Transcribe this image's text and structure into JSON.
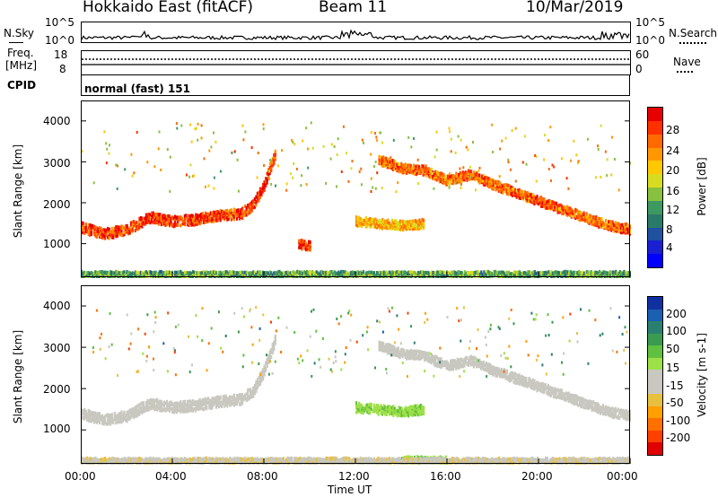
{
  "header": {
    "station": "Hokkaido East (fitACF)",
    "beam": "Beam 11",
    "date": "10/Mar/2019"
  },
  "noise": {
    "left_label": "N.Sky",
    "right_label": "N.Search",
    "tick_top": "10^5",
    "tick_bottom": "10^0"
  },
  "freq": {
    "label_line1": "Freq.",
    "label_line2": "[MHz]",
    "left_ticks": [
      "18",
      "8"
    ],
    "right_ticks": [
      "60",
      "0"
    ],
    "right_label": "Nave"
  },
  "cpid": {
    "label": "CPID",
    "value": "normal (fast) 151"
  },
  "axes": {
    "ylabel": "Slant Range [km]",
    "yticks": [
      "4000",
      "3000",
      "2000",
      "1000"
    ],
    "xticks": [
      "00:00",
      "04:00",
      "08:00",
      "12:00",
      "16:00",
      "20:00",
      "00:00"
    ],
    "xlabel": "Time UT"
  },
  "colorbars": {
    "power": {
      "label": "Power [dB]",
      "ticks": [
        "28",
        "24",
        "20",
        "16",
        "12",
        "8",
        "4"
      ],
      "colors": [
        "#e60000",
        "#ff3000",
        "#ff6a00",
        "#ff9800",
        "#ffc800",
        "#d8dc20",
        "#88c040",
        "#3c9a60",
        "#2a7a6a",
        "#2050a0",
        "#1a20d0",
        "#0000ff"
      ]
    },
    "velocity": {
      "label": "Velocity [m s-1]",
      "ticks": [
        "200",
        "100",
        "50",
        "15",
        "-15",
        "-50",
        "-100",
        "-200"
      ],
      "colors": [
        "#1030a0",
        "#1a5fb0",
        "#2a8070",
        "#3a9a50",
        "#60c040",
        "#9ee048",
        "#c8c8c0",
        "#c8c8c0",
        "#e8c040",
        "#ffa000",
        "#ff7000",
        "#ff4000",
        "#e00000"
      ]
    }
  },
  "chart_data": [
    {
      "type": "heatmap",
      "title": "Power [dB]",
      "xlabel": "Time UT",
      "ylabel": "Slant Range [km]",
      "xlim": [
        "00:00",
        "24:00"
      ],
      "ylim": [
        180,
        4500
      ],
      "clim": [
        0,
        30
      ],
      "bands": [
        {
          "t": [
            0.0,
            1.0,
            2.0,
            3.0,
            4.0,
            5.0,
            6.0,
            7.0,
            7.5,
            8.0,
            8.5
          ],
          "r": [
            1450,
            1300,
            1400,
            1700,
            1600,
            1650,
            1750,
            1800,
            2000,
            2500,
            3300
          ],
          "dB": 26
        },
        {
          "t": [
            13.0,
            14.0,
            15.0,
            16.0,
            17.0,
            18.0,
            19.0,
            20.0,
            21.0,
            22.0,
            23.0,
            24.0
          ],
          "r": [
            3100,
            2900,
            2850,
            2600,
            2750,
            2500,
            2300,
            2100,
            1900,
            1700,
            1500,
            1400
          ],
          "dB": 24
        },
        {
          "t": [
            9.5,
            10.0
          ],
          "r": [
            1050,
            1000
          ],
          "dB": 26
        },
        {
          "t": [
            12.0,
            13.0,
            14.0,
            15.0
          ],
          "r": [
            1600,
            1550,
            1500,
            1550
          ],
          "dB": 20
        },
        {
          "t": [
            0.0,
            24.0
          ],
          "r": [
            300,
            300
          ],
          "dB": 12
        }
      ]
    },
    {
      "type": "heatmap",
      "title": "Velocity [m s-1]",
      "xlabel": "Time UT",
      "ylabel": "Slant Range [km]",
      "xlim": [
        "00:00",
        "24:00"
      ],
      "ylim": [
        180,
        4500
      ],
      "clim": [
        -200,
        200
      ],
      "bands": [
        {
          "t": [
            0.0,
            1.0,
            2.0,
            3.0,
            4.0,
            5.0,
            6.0,
            7.0,
            7.5,
            8.0,
            8.5
          ],
          "r": [
            1450,
            1300,
            1400,
            1700,
            1600,
            1650,
            1750,
            1800,
            2000,
            2500,
            3300
          ],
          "v": 0
        },
        {
          "t": [
            13.0,
            14.0,
            15.0,
            16.0,
            17.0,
            18.0,
            19.0,
            20.0,
            21.0,
            22.0,
            23.0,
            24.0
          ],
          "r": [
            3100,
            2900,
            2850,
            2600,
            2750,
            2500,
            2300,
            2100,
            1900,
            1700,
            1500,
            1400
          ],
          "v": 0
        },
        {
          "t": [
            12.0,
            13.0,
            14.0,
            15.0
          ],
          "r": [
            1600,
            1550,
            1500,
            1550
          ],
          "v": 40
        },
        {
          "t": [
            14.0,
            16.0
          ],
          "r": [
            300,
            300
          ],
          "v": 40
        },
        {
          "t": [
            0.0,
            24.0
          ],
          "r": [
            300,
            300
          ],
          "v": -40
        }
      ]
    }
  ]
}
